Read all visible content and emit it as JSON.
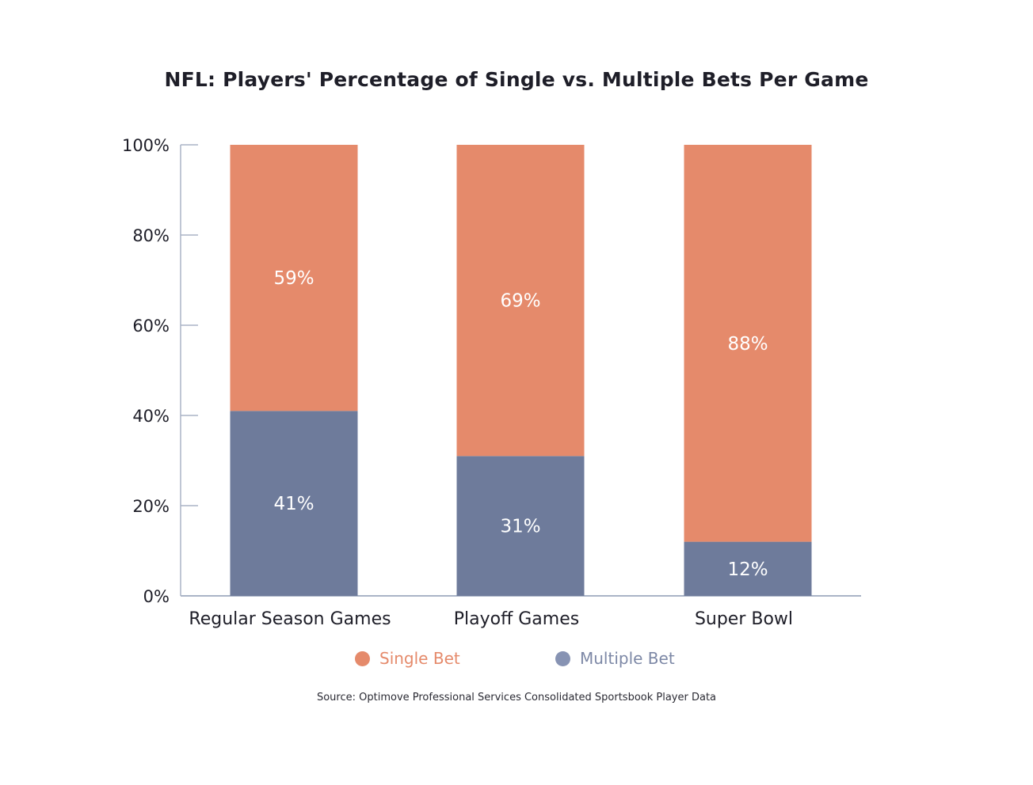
{
  "chart_data": {
    "type": "bar",
    "stacked": true,
    "title": "NFL: Players' Percentage of Single vs. Multiple Bets Per Game",
    "categories": [
      "Regular Season Games",
      "Playoff Games",
      "Super Bowl"
    ],
    "series": [
      {
        "name": "Multiple Bet",
        "values": [
          41,
          31,
          12
        ],
        "labels": [
          "41%",
          "31%",
          "12%"
        ],
        "color": "#6e7b9b"
      },
      {
        "name": "Single Bet",
        "values": [
          59,
          69,
          88
        ],
        "labels": [
          "59%",
          "69%",
          "88%"
        ],
        "color": "#e58a6b"
      }
    ],
    "yticks": [
      0,
      20,
      40,
      60,
      80,
      100
    ],
    "ytick_labels": [
      "0%",
      "20%",
      "40%",
      "60%",
      "80%",
      "100%"
    ],
    "ylim": [
      0,
      100
    ],
    "xlabel": "",
    "ylabel": "",
    "grid": false,
    "legend_position": "bottom-center"
  },
  "legend": {
    "items": [
      {
        "label": "Single Bet",
        "color": "#e58a6b",
        "text_color": "#e58a6b"
      },
      {
        "label": "Multiple Bet",
        "color": "#8793b3",
        "text_color": "#7d88a6"
      }
    ]
  },
  "source": "Source: Optimove Professional Services Consolidated Sportsbook Player Data",
  "colors": {
    "axis": "#aab4c6",
    "text": "#1e1e28"
  }
}
